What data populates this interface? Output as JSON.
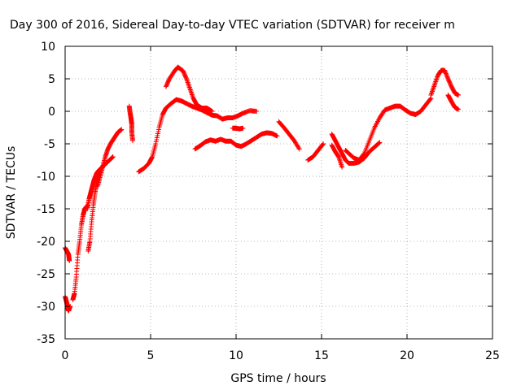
{
  "chart_data": {
    "type": "scatter",
    "title": "Day 300 of 2016, Sidereal Day-to-day VTEC variation (SDTVAR) for receiver m",
    "xlabel": "GPS time / hours",
    "ylabel": "SDTVAR / TECUs",
    "xlim": [
      0,
      25
    ],
    "ylim": [
      -35,
      10
    ],
    "xticks": [
      0,
      5,
      10,
      15,
      20,
      25
    ],
    "yticks": [
      -35,
      -30,
      -25,
      -20,
      -15,
      -10,
      -5,
      0,
      5,
      10
    ],
    "grid": true,
    "marker": "+",
    "color": "#ff0000",
    "series": [
      {
        "segments": [
          [
            [
              0.0,
              -21.0
            ],
            [
              0.1,
              -21.5
            ],
            [
              0.2,
              -22.0
            ],
            [
              0.25,
              -23.0
            ]
          ],
          [
            [
              0.0,
              -28.5
            ],
            [
              0.1,
              -29.5
            ],
            [
              0.15,
              -30.3
            ],
            [
              0.2,
              -30.7
            ],
            [
              0.3,
              -30.0
            ]
          ],
          [
            [
              0.45,
              -29.0
            ],
            [
              0.55,
              -28.0
            ],
            [
              0.65,
              -25.5
            ],
            [
              0.75,
              -22.0
            ],
            [
              0.85,
              -20.0
            ],
            [
              0.95,
              -17.5
            ],
            [
              1.05,
              -16.0
            ],
            [
              1.15,
              -15.0
            ],
            [
              1.3,
              -14.5
            ]
          ],
          [
            [
              1.35,
              -21.5
            ],
            [
              1.45,
              -20.0
            ],
            [
              1.55,
              -17.0
            ],
            [
              1.65,
              -14.5
            ],
            [
              1.75,
              -12.5
            ],
            [
              1.85,
              -11.0
            ],
            [
              1.95,
              -10.0
            ],
            [
              2.05,
              -9.0
            ],
            [
              2.2,
              -8.5
            ]
          ],
          [
            [
              1.3,
              -15.0
            ],
            [
              1.4,
              -13.5
            ],
            [
              1.5,
              -12.5
            ],
            [
              1.6,
              -11.5
            ],
            [
              1.7,
              -10.5
            ],
            [
              1.85,
              -9.5
            ],
            [
              2.0,
              -9.0
            ],
            [
              2.2,
              -8.5
            ],
            [
              2.4,
              -8.0
            ],
            [
              2.6,
              -7.5
            ],
            [
              2.8,
              -7.0
            ]
          ],
          [
            [
              1.9,
              -11.5
            ],
            [
              2.05,
              -10.0
            ],
            [
              2.2,
              -8.5
            ],
            [
              2.35,
              -7.0
            ],
            [
              2.5,
              -5.8
            ],
            [
              2.7,
              -4.8
            ],
            [
              2.9,
              -4.0
            ],
            [
              3.1,
              -3.2
            ],
            [
              3.3,
              -2.8
            ]
          ],
          [
            [
              3.75,
              0.8
            ],
            [
              3.8,
              -0.2
            ],
            [
              3.85,
              -1.0
            ],
            [
              3.9,
              -2.0
            ],
            [
              3.9,
              -3.2
            ],
            [
              3.95,
              -4.5
            ]
          ],
          [
            [
              4.3,
              -9.3
            ],
            [
              4.6,
              -8.8
            ],
            [
              4.9,
              -8.0
            ],
            [
              5.1,
              -7.0
            ],
            [
              5.3,
              -5.0
            ],
            [
              5.5,
              -2.5
            ],
            [
              5.7,
              -0.5
            ],
            [
              5.9,
              0.5
            ],
            [
              6.2,
              1.2
            ],
            [
              6.5,
              1.8
            ],
            [
              6.8,
              1.6
            ],
            [
              7.1,
              1.2
            ],
            [
              7.4,
              0.8
            ],
            [
              7.7,
              0.5
            ],
            [
              8.0,
              0.2
            ],
            [
              8.3,
              -0.2
            ],
            [
              8.6,
              -0.6
            ],
            [
              8.9,
              -0.7
            ],
            [
              9.2,
              -1.2
            ],
            [
              9.5,
              -1.0
            ],
            [
              9.8,
              -1.0
            ],
            [
              10.1,
              -0.7
            ],
            [
              10.4,
              -0.3
            ],
            [
              10.8,
              0.1
            ],
            [
              11.2,
              0.0
            ]
          ],
          [
            [
              5.9,
              3.8
            ],
            [
              6.1,
              5.0
            ],
            [
              6.4,
              6.2
            ],
            [
              6.6,
              6.8
            ],
            [
              6.9,
              6.2
            ],
            [
              7.1,
              5.0
            ],
            [
              7.3,
              3.5
            ],
            [
              7.5,
              2.0
            ],
            [
              7.7,
              1.0
            ],
            [
              8.0,
              0.5
            ],
            [
              8.3,
              0.5
            ],
            [
              8.6,
              0.0
            ]
          ],
          [
            [
              7.6,
              -5.8
            ],
            [
              7.9,
              -5.3
            ],
            [
              8.2,
              -4.7
            ],
            [
              8.5,
              -4.4
            ],
            [
              8.8,
              -4.6
            ],
            [
              9.1,
              -4.3
            ],
            [
              9.4,
              -4.6
            ],
            [
              9.7,
              -4.6
            ],
            [
              10.0,
              -5.2
            ],
            [
              10.3,
              -5.4
            ],
            [
              10.6,
              -5.0
            ],
            [
              10.9,
              -4.5
            ],
            [
              11.2,
              -4.0
            ],
            [
              11.5,
              -3.5
            ],
            [
              11.8,
              -3.3
            ],
            [
              12.1,
              -3.4
            ],
            [
              12.4,
              -3.8
            ]
          ],
          [
            [
              9.8,
              -2.6
            ],
            [
              10.0,
              -2.6
            ],
            [
              10.2,
              -2.7
            ],
            [
              10.4,
              -2.6
            ]
          ],
          [
            [
              12.5,
              -1.6
            ],
            [
              12.8,
              -2.5
            ],
            [
              13.1,
              -3.5
            ],
            [
              13.4,
              -4.5
            ],
            [
              13.7,
              -5.8
            ]
          ],
          [
            [
              14.2,
              -7.5
            ],
            [
              14.5,
              -7.0
            ],
            [
              14.8,
              -6.0
            ],
            [
              15.1,
              -5.0
            ]
          ],
          [
            [
              15.6,
              -3.5
            ],
            [
              15.8,
              -4.5
            ],
            [
              16.0,
              -5.5
            ],
            [
              16.2,
              -6.5
            ],
            [
              16.4,
              -7.5
            ],
            [
              16.6,
              -8.0
            ],
            [
              16.9,
              -8.0
            ],
            [
              17.2,
              -7.8
            ],
            [
              17.5,
              -7.2
            ],
            [
              17.8,
              -6.2
            ],
            [
              18.1,
              -5.5
            ],
            [
              18.4,
              -4.8
            ]
          ],
          [
            [
              15.6,
              -5.2
            ],
            [
              15.8,
              -6.2
            ],
            [
              16.0,
              -7.0
            ],
            [
              16.2,
              -8.6
            ]
          ],
          [
            [
              16.4,
              -6.0
            ],
            [
              16.6,
              -6.5
            ],
            [
              16.9,
              -7.2
            ],
            [
              17.2,
              -7.5
            ],
            [
              17.5,
              -6.5
            ],
            [
              17.8,
              -4.5
            ],
            [
              18.1,
              -2.5
            ],
            [
              18.4,
              -1.0
            ],
            [
              18.7,
              0.2
            ],
            [
              19.0,
              0.5
            ],
            [
              19.3,
              0.8
            ],
            [
              19.6,
              0.8
            ],
            [
              19.9,
              0.2
            ],
            [
              20.2,
              -0.3
            ],
            [
              20.5,
              -0.5
            ],
            [
              20.8,
              0.0
            ],
            [
              21.1,
              1.0
            ],
            [
              21.4,
              2.0
            ]
          ],
          [
            [
              21.4,
              2.5
            ],
            [
              21.6,
              4.0
            ],
            [
              21.8,
              5.5
            ],
            [
              22.0,
              6.3
            ],
            [
              22.2,
              6.3
            ],
            [
              22.4,
              5.0
            ],
            [
              22.6,
              3.8
            ],
            [
              22.8,
              2.8
            ],
            [
              23.0,
              2.5
            ]
          ],
          [
            [
              22.4,
              2.5
            ],
            [
              22.6,
              1.5
            ],
            [
              22.8,
              0.6
            ],
            [
              23.0,
              0.3
            ]
          ]
        ]
      }
    ]
  }
}
